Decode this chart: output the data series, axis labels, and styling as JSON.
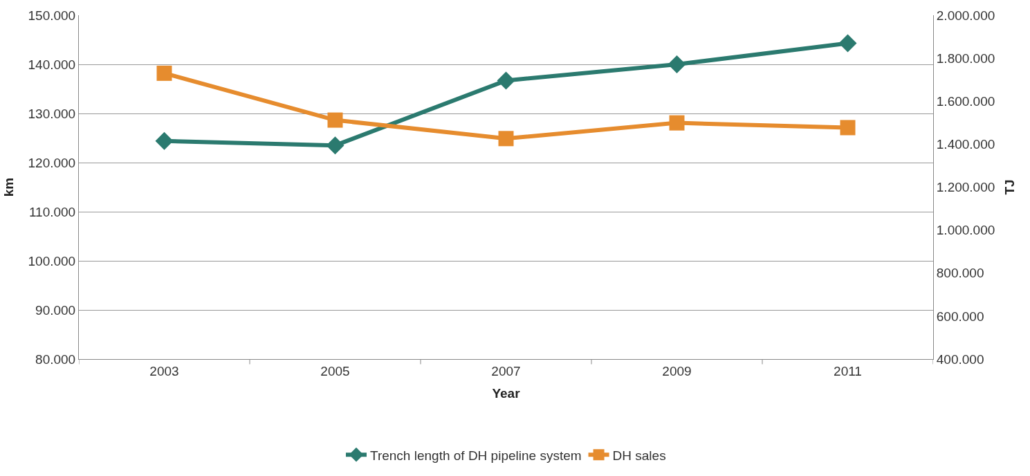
{
  "chart_data": {
    "type": "line",
    "xlabel": "Year",
    "ylabel": "km",
    "y2label": "TJ",
    "categories": [
      "2003",
      "2005",
      "2007",
      "2009",
      "2011"
    ],
    "series": [
      {
        "name": "Trench length of DH pipeline system",
        "color": "#2b7a6f",
        "marker": "diamond",
        "values": [
          124400,
          123500,
          136700,
          140000,
          144300
        ]
      },
      {
        "name": "DH sales",
        "color": "#e68c2e",
        "marker": "square",
        "axis": "y2",
        "values": [
          1730000,
          1512000,
          1426000,
          1499000,
          1477000
        ]
      }
    ],
    "ylim": [
      80000,
      150000
    ],
    "yticks": [
      {
        "value": 80000,
        "label": "80.000"
      },
      {
        "value": 90000,
        "label": "90.000"
      },
      {
        "value": 100000,
        "label": "100.000"
      },
      {
        "value": 110000,
        "label": "110.000"
      },
      {
        "value": 120000,
        "label": "120.000"
      },
      {
        "value": 130000,
        "label": "130.000"
      },
      {
        "value": 140000,
        "label": "140.000"
      },
      {
        "value": 150000,
        "label": "150.000"
      }
    ],
    "y2lim": [
      400000,
      2000000
    ],
    "y2ticks": [
      {
        "value": 400000,
        "label": "400.000"
      },
      {
        "value": 600000,
        "label": "600.000"
      },
      {
        "value": 800000,
        "label": "800.000"
      },
      {
        "value": 1000000,
        "label": "1.000.000"
      },
      {
        "value": 1200000,
        "label": "1.200.000"
      },
      {
        "value": 1400000,
        "label": "1.400.000"
      },
      {
        "value": 1600000,
        "label": "1.600.000"
      },
      {
        "value": 1800000,
        "label": "1.800.000"
      },
      {
        "value": 2000000,
        "label": "2.000.000"
      }
    ],
    "grid": "y",
    "legend": "bottom",
    "line_style": "solid"
  }
}
